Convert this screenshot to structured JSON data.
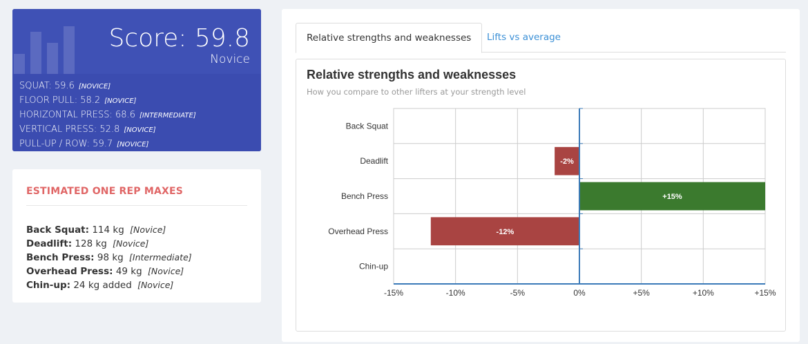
{
  "score_card": {
    "score": "Score: 59.8",
    "level": "Novice",
    "categories": [
      {
        "name": "SQUAT: 59.6",
        "level": "[NOVICE]"
      },
      {
        "name": "FLOOR PULL: 58.2",
        "level": "[NOVICE]"
      },
      {
        "name": "HORIZONTAL PRESS: 68.6",
        "level": "[INTERMEDIATE]"
      },
      {
        "name": "VERTICAL PRESS: 52.8",
        "level": "[NOVICE]"
      },
      {
        "name": "PULL-UP / ROW: 59.7",
        "level": "[NOVICE]"
      }
    ]
  },
  "one_rep_maxes": {
    "title": "ESTIMATED ONE REP MAXES",
    "items": [
      {
        "lift": "Back Squat:",
        "value": "114 kg",
        "level": "[Novice]"
      },
      {
        "lift": "Deadlift:",
        "value": "128 kg",
        "level": "[Novice]"
      },
      {
        "lift": "Bench Press:",
        "value": "98 kg",
        "level": "[Intermediate]"
      },
      {
        "lift": "Overhead Press:",
        "value": "49 kg",
        "level": "[Novice]"
      },
      {
        "lift": "Chin-up:",
        "value": "24 kg added",
        "level": "[Novice]"
      }
    ]
  },
  "tabs": [
    {
      "label": "Relative strengths and weaknesses",
      "active": true
    },
    {
      "label": "Lifts vs average",
      "active": false
    }
  ],
  "panel": {
    "title": "Relative strengths and weaknesses",
    "subtitle": "How you compare to other lifters at your strength level"
  },
  "chart_data": {
    "type": "bar",
    "orientation": "horizontal",
    "categories": [
      "Back Squat",
      "Deadlift",
      "Bench Press",
      "Overhead Press",
      "Chin-up"
    ],
    "values": [
      0,
      -2,
      15,
      -12,
      0
    ],
    "data_labels": [
      "",
      "-2%",
      "+15%",
      "-12%",
      ""
    ],
    "xlim": [
      -15,
      15
    ],
    "xticks": [
      -15,
      -10,
      -5,
      0,
      5,
      10,
      15
    ],
    "xtick_labels": [
      "-15%",
      "-10%",
      "-5%",
      "0%",
      "+5%",
      "+10%",
      "+15%"
    ],
    "grid": true,
    "colors": {
      "positive": "#3b7a2e",
      "negative": "#a94442",
      "axis": "#3a7ab8"
    }
  }
}
